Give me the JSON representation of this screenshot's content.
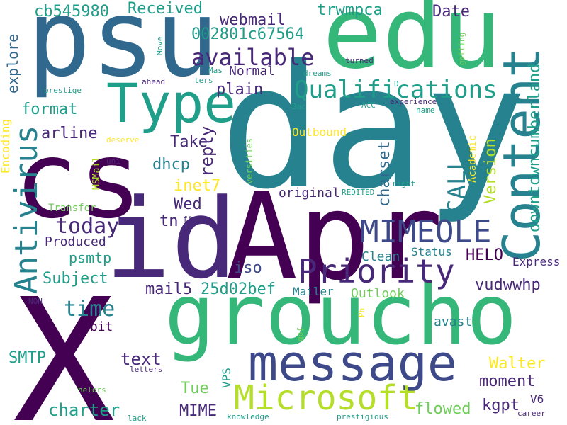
{
  "palette": {
    "deep_purple": "#440154",
    "purple": "#482878",
    "indigo": "#3e4989",
    "blue": "#31688e",
    "teal": "#26828e",
    "sea": "#1f9e89",
    "green": "#35b779",
    "lime": "#6ece58",
    "yellowgreen": "#b5de2b",
    "yellow": "#fde725"
  },
  "words": {
    "psu": "psu",
    "edu": "edu",
    "day": "day",
    "cs": "cs",
    "id": "id",
    "apr": "Apr",
    "x": "X",
    "groucho": "groucho",
    "message": "message",
    "microsoft": "Microsoft",
    "type": "Type",
    "content": "Content",
    "mimeole": "MIMEOLE",
    "priority": "Priority",
    "antivirus": "Antivirus",
    "qualifications": "Qualifications",
    "available": "available",
    "received": "Received",
    "webmail": "webmail",
    "trwmpca": "trwmpca",
    "date": "Date",
    "cb545980": "cb545980",
    "hex_id": "002801c67564",
    "explore": "explore",
    "plain": "plain",
    "format": "format",
    "arline": "arline",
    "take": "Take",
    "dhcp": "dhcp",
    "reply": "reply",
    "inet7": "inet7",
    "wed": "Wed",
    "today": "today",
    "tn": "tn",
    "produced": "Produced",
    "psmtp": "psmtp",
    "subject": "Subject",
    "mail5": "mail5",
    "hash": "25d02bef",
    "time": "time",
    "bit7": "7bit",
    "smtp": "SMTP",
    "text": "text",
    "tue": "Tue",
    "charter": "charter",
    "mime": "MIME",
    "vps": "VPS",
    "iso": "iso",
    "mailer": "Mailer",
    "outlook": "Outlook",
    "clean": "Clean",
    "status": "Status",
    "helo": "HELO",
    "express": "Express",
    "vudwwhp": "vudwwhp",
    "walter": "Walter",
    "moment": "moment",
    "flowed": "flowed",
    "kgpt": "kgpt",
    "v6": "V6",
    "normal": "Normal",
    "original": "original",
    "charset": "charset",
    "call": "CALL",
    "version": "Version",
    "downtowncumberland": "downtowncumberland",
    "outbound": "Outbound",
    "academic": "Academic",
    "encoding": "Encoding",
    "transfer": "Transfer",
    "msmail": "MSMail",
    "deserve": "deserve",
    "uni": "uni",
    "versities": "versities",
    "redited": "REDITED",
    "right": "right",
    "field": "field",
    "prestige": "prestige",
    "ahead": "ahead",
    "move": "Move",
    "mas": "Mas",
    "ters": "ters",
    "dreams": "dreams",
    "turned": "turned",
    "getting": "getting",
    "acc": "ACC",
    "bac": "Bac",
    "experience": "experience",
    "name": "name",
    "d_letter": "D",
    "non": "NON",
    "ph": "Ph",
    "job": "job",
    "letters": "letters",
    "helors": "helors",
    "lack": "lack",
    "knowledge": "knowledge",
    "prestigious": "prestigious",
    "career": "career",
    "avast": "avast"
  }
}
